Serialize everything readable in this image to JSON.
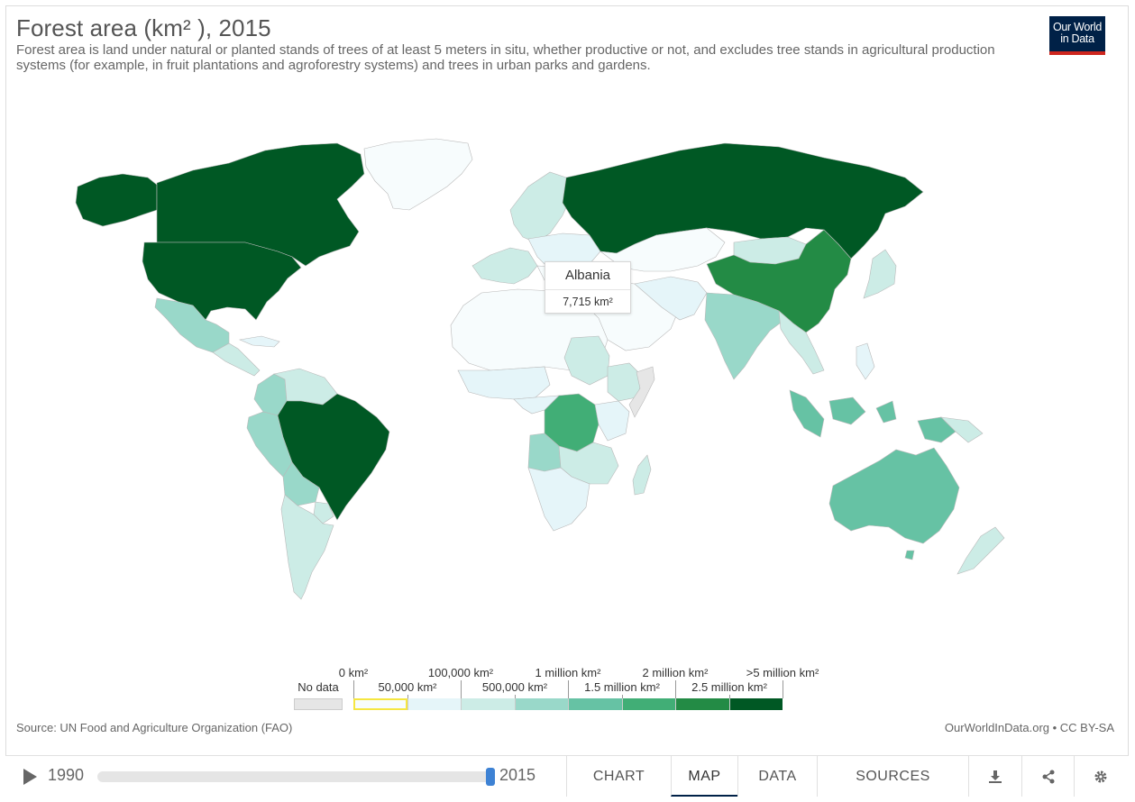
{
  "header": {
    "title": "Forest area (km² ), 2015",
    "subtitle": "Forest area is land under natural or planted stands of trees of at least 5 meters in situ, whether productive or not, and excludes tree stands in agricultural production systems (for example, in fruit plantations and agroforestry systems) and trees in urban parks and gardens.",
    "logo_line1": "Our World",
    "logo_line2": "in Data"
  },
  "colors": {
    "brand_navy": "#002147",
    "brand_red": "#ce261e",
    "no_data": "#e6e6e6",
    "bin_0": "#f7fcfd",
    "bin_1": "#e5f5f9",
    "bin_2": "#ccece6",
    "bin_3": "#99d8c9",
    "bin_4": "#66c2a4",
    "bin_5": "#41ae76",
    "bin_6": "#238b45",
    "bin_7": "#005824",
    "highlight": "#f5e642"
  },
  "tooltip": {
    "country": "Albania",
    "value": "7,715 km²"
  },
  "chart_data": {
    "type": "map",
    "title": "Forest area (km² ), 2015",
    "year": 2015,
    "legend": {
      "no_data_label": "No data",
      "top_labels": [
        "0 km²",
        "100,000 km²",
        "1 million km²",
        "2 million km²",
        ">5 million km²"
      ],
      "bottom_labels": [
        "50,000 km²",
        "500,000 km²",
        "1.5 million km²",
        "2.5 million km²"
      ],
      "bins": [
        {
          "from": "0 km²",
          "to": "50,000 km²",
          "color": "#f7fcfd",
          "highlighted": true
        },
        {
          "from": "50,000 km²",
          "to": "100,000 km²",
          "color": "#e5f5f9"
        },
        {
          "from": "100,000 km²",
          "to": "500,000 km²",
          "color": "#ccece6"
        },
        {
          "from": "500,000 km²",
          "to": "1 million km²",
          "color": "#99d8c9"
        },
        {
          "from": "1 million km²",
          "to": "1.5 million km²",
          "color": "#66c2a4"
        },
        {
          "from": "1.5 million km²",
          "to": "2 million km²",
          "color": "#41ae76"
        },
        {
          "from": "2 million km²",
          "to": "2.5 million km²",
          "color": "#238b45"
        },
        {
          "from": "2.5 million km²",
          "to": ">5 million km²",
          "color": "#005824"
        }
      ]
    },
    "regions": [
      {
        "name": "Canada",
        "bin": 7
      },
      {
        "name": "United States",
        "bin": 7
      },
      {
        "name": "Russia",
        "bin": 7
      },
      {
        "name": "Brazil",
        "bin": 7
      },
      {
        "name": "China",
        "bin": 6
      },
      {
        "name": "Democratic Republic of Congo",
        "bin": 5
      },
      {
        "name": "Australia",
        "bin": 4
      },
      {
        "name": "Indonesia",
        "bin": 4
      },
      {
        "name": "Peru",
        "bin": 3
      },
      {
        "name": "India",
        "bin": 3
      },
      {
        "name": "Bolivia",
        "bin": 3
      },
      {
        "name": "Angola",
        "bin": 3
      },
      {
        "name": "Colombia",
        "bin": 3
      },
      {
        "name": "Mexico",
        "bin": 3
      },
      {
        "name": "Argentina",
        "bin": 2
      },
      {
        "name": "Venezuela",
        "bin": 2
      },
      {
        "name": "Mongolia",
        "bin": 2
      },
      {
        "name": "Sudan",
        "bin": 2
      },
      {
        "name": "Greenland",
        "bin": 0
      },
      {
        "name": "Albania",
        "bin": 0
      }
    ]
  },
  "footer": {
    "source": "Source: UN Food and Agriculture Organization (FAO)",
    "credit": "OurWorldInData.org • CC BY-SA"
  },
  "controls": {
    "start_year": "1990",
    "end_year": "2015",
    "tabs": [
      {
        "label": "CHART",
        "active": false
      },
      {
        "label": "MAP",
        "active": true
      },
      {
        "label": "DATA",
        "active": false
      },
      {
        "label": "SOURCES",
        "active": false
      }
    ],
    "icons": [
      "download-icon",
      "share-icon",
      "settings-icon"
    ]
  }
}
